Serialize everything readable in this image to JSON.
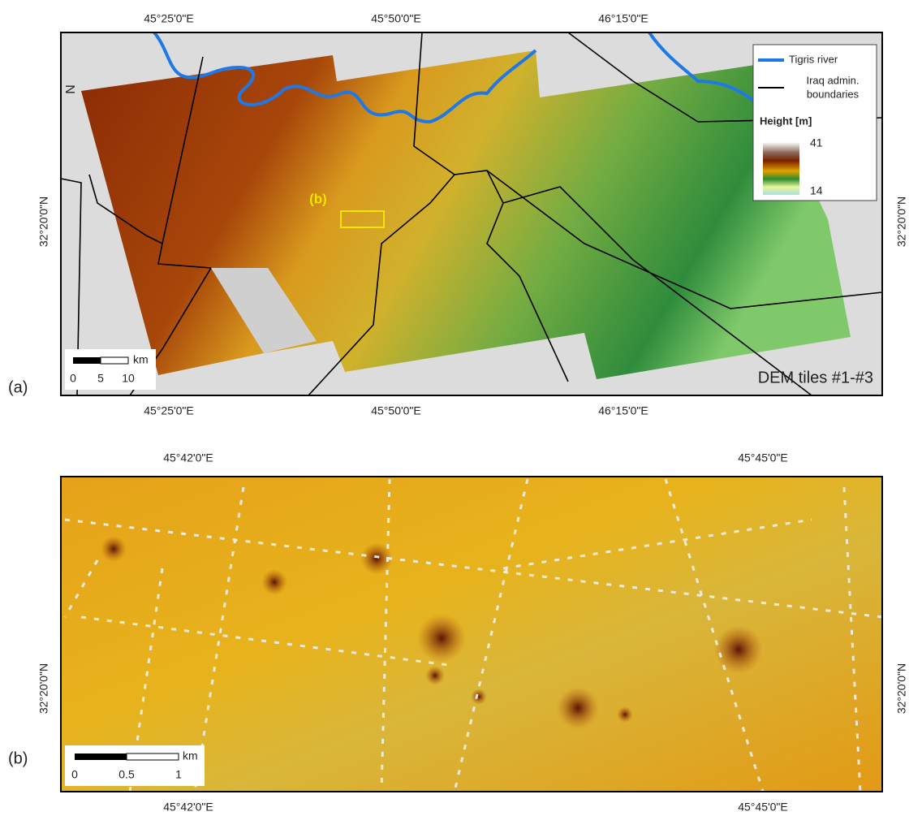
{
  "panel_a": {
    "label": "(a)",
    "top_ticks": [
      "45°25'0\"E",
      "45°50'0\"E",
      "46°15'0\"E"
    ],
    "bottom_ticks": [
      "45°25'0\"E",
      "45°50'0\"E",
      "46°15'0\"E"
    ],
    "left_tick": "32°20'0\"N",
    "right_tick": "32°20'0\"N",
    "north": "N",
    "inset_label": "(b)",
    "tiles_label": "DEM tiles #1-#3",
    "legend": {
      "river": "Tigris river",
      "admin_line1": "Iraq admin.",
      "admin_line2": "boundaries",
      "height_title": "Height [m]",
      "max": "41",
      "min": "14"
    },
    "scale": {
      "unit": "km",
      "ticks": [
        "0",
        "5",
        "10"
      ]
    }
  },
  "panel_b": {
    "label": "(b)",
    "top_ticks": [
      "45°42'0\"E",
      "45°45'0\"E"
    ],
    "bottom_ticks": [
      "45°42'0\"E",
      "45°45'0\"E"
    ],
    "left_tick": "32°20'0\"N",
    "right_tick": "32°20'0\"N",
    "scale": {
      "unit": "km",
      "ticks": [
        "0",
        "0.5",
        "1"
      ]
    }
  }
}
